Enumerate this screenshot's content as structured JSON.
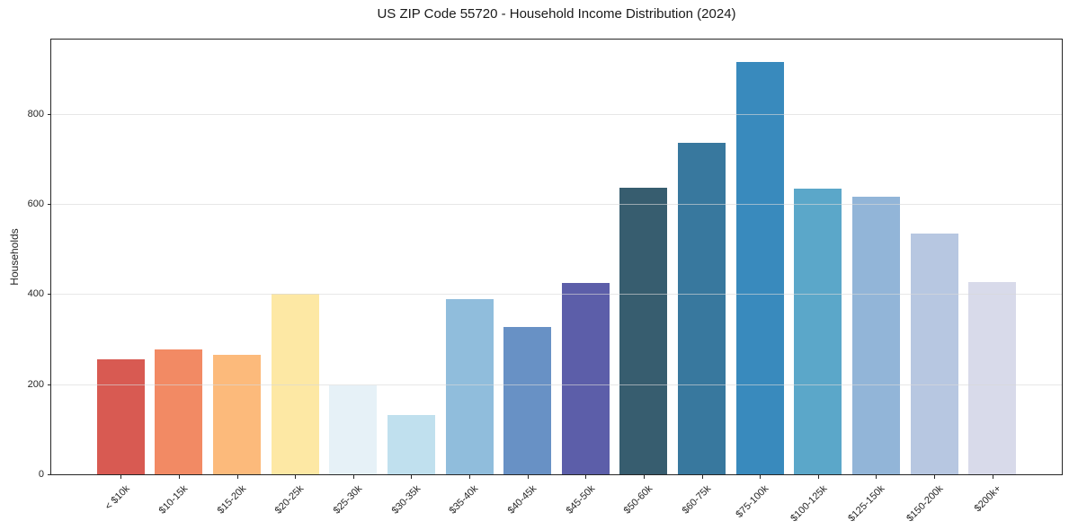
{
  "figure": {
    "title": "US ZIP Code 55720 - Household Income Distribution (2024)"
  },
  "chart_data": {
    "type": "bar",
    "title": "US ZIP Code 55720 - Household Income Distribution (2024)",
    "xlabel": "",
    "ylabel": "Households",
    "categories": [
      "< $10k",
      "$10-15k",
      "$15-20k",
      "$20-25k",
      "$25-30k",
      "$30-35k",
      "$35-40k",
      "$40-45k",
      "$45-50k",
      "$50-60k",
      "$60-75k",
      "$75-100k",
      "$100-125k",
      "$125-150k",
      "$150-200k",
      "$200k+"
    ],
    "values": [
      256,
      277,
      266,
      401,
      198,
      131,
      388,
      328,
      425,
      637,
      736,
      915,
      635,
      617,
      535,
      426
    ],
    "bar_colors": [
      "#d85a52",
      "#f28a64",
      "#fcba7b",
      "#fde8a4",
      "#e6f1f7",
      "#c0e0ee",
      "#90bddc",
      "#6891c5",
      "#5c5ea9",
      "#375d6f",
      "#38789e",
      "#398abd",
      "#5ba7c9",
      "#92b5d8",
      "#b7c7e1",
      "#d8daea"
    ],
    "yticks": [
      0,
      200,
      400,
      600,
      800
    ],
    "ylim": [
      0,
      965
    ],
    "grid": "horizontal",
    "gridlines_above_bars": true,
    "legend": "none",
    "background_color": "#ffffff",
    "axis_color": "#262626",
    "grid_color": "#e8e8e8"
  }
}
